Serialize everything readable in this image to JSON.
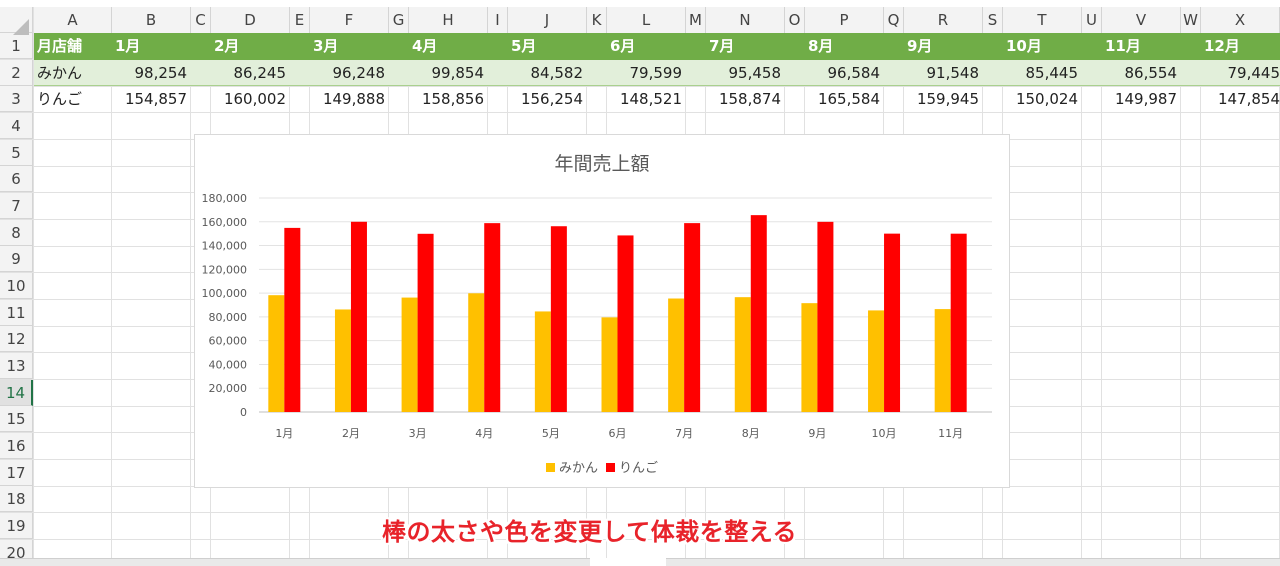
{
  "columns": [
    "A",
    "B",
    "C",
    "D",
    "E",
    "F",
    "G",
    "H",
    "I",
    "J",
    "K",
    "L",
    "M",
    "N",
    "O",
    "P",
    "Q",
    "R",
    "S",
    "T",
    "U",
    "V",
    "W",
    "X"
  ],
  "rows": [
    "1",
    "2",
    "3",
    "4",
    "5",
    "6",
    "7",
    "8",
    "9",
    "10",
    "11",
    "12",
    "13",
    "14",
    "15",
    "16",
    "17",
    "18",
    "19",
    "20"
  ],
  "active_row": "14",
  "table": {
    "header_label": "月店舗",
    "months": [
      "1月",
      "2月",
      "3月",
      "4月",
      "5月",
      "6月",
      "7月",
      "8月",
      "9月",
      "10月",
      "11月",
      "12月"
    ],
    "rows": [
      {
        "label": "みかん",
        "values": [
          "98,254",
          "86,245",
          "96,248",
          "99,854",
          "84,582",
          "79,599",
          "95,458",
          "96,584",
          "91,548",
          "85,445",
          "86,554",
          "79,445"
        ]
      },
      {
        "label": "りんご",
        "values": [
          "154,857",
          "160,002",
          "149,888",
          "158,856",
          "156,254",
          "148,521",
          "158,874",
          "165,584",
          "159,945",
          "150,024",
          "149,987",
          "147,854"
        ]
      }
    ]
  },
  "chart_data": {
    "type": "bar",
    "title": "年間売上額",
    "categories": [
      "1月",
      "2月",
      "3月",
      "4月",
      "5月",
      "6月",
      "7月",
      "8月",
      "9月",
      "10月",
      "11月"
    ],
    "series": [
      {
        "name": "みかん",
        "color": "#ffc000",
        "values": [
          98254,
          86245,
          96248,
          99854,
          84582,
          79599,
          95458,
          96584,
          91548,
          85445,
          86554
        ]
      },
      {
        "name": "りんご",
        "color": "#ff0000",
        "values": [
          154857,
          160002,
          149888,
          158856,
          156254,
          148521,
          158874,
          165584,
          159945,
          150024,
          149987
        ]
      }
    ],
    "ylim": [
      0,
      180000
    ],
    "yticks": [
      "0",
      "20,000",
      "40,000",
      "60,000",
      "80,000",
      "100,000",
      "120,000",
      "140,000",
      "160,000",
      "180,000"
    ],
    "grid": true,
    "legend": "bottom"
  },
  "caption": "棒の太さや色を変更して体裁を整える"
}
